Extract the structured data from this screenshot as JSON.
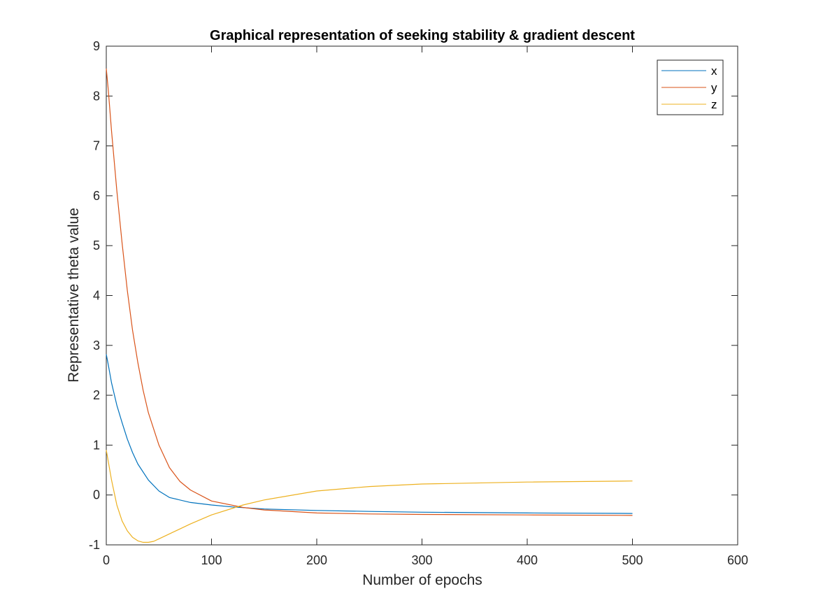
{
  "chart_data": {
    "type": "line",
    "title": "Graphical representation of seeking stability & gradient descent",
    "xlabel": "Number of epochs",
    "ylabel": "Representative theta value",
    "xlim": [
      0,
      600
    ],
    "ylim": [
      -1,
      9
    ],
    "xticks": [
      "0",
      "100",
      "200",
      "300",
      "400",
      "500",
      "600"
    ],
    "yticks": [
      "-1",
      "0",
      "1",
      "2",
      "3",
      "4",
      "5",
      "6",
      "7",
      "8",
      "9"
    ],
    "grid": false,
    "legend_position": "top-right",
    "series": [
      {
        "name": "x",
        "color": "#0072BD",
        "x": [
          0,
          2,
          5,
          10,
          15,
          20,
          25,
          30,
          40,
          50,
          60,
          80,
          100,
          120,
          150,
          200,
          250,
          300,
          400,
          500
        ],
        "y": [
          2.82,
          2.6,
          2.25,
          1.8,
          1.45,
          1.12,
          0.85,
          0.62,
          0.3,
          0.08,
          -0.05,
          -0.15,
          -0.2,
          -0.24,
          -0.28,
          -0.31,
          -0.33,
          -0.345,
          -0.36,
          -0.37
        ]
      },
      {
        "name": "y",
        "color": "#D95319",
        "x": [
          0,
          2,
          5,
          10,
          15,
          20,
          25,
          30,
          35,
          40,
          50,
          60,
          70,
          80,
          100,
          130,
          150,
          200,
          250,
          300,
          400,
          500
        ],
        "y": [
          8.55,
          8.1,
          7.3,
          6.1,
          5.05,
          4.1,
          3.3,
          2.65,
          2.1,
          1.65,
          1.0,
          0.55,
          0.27,
          0.1,
          -0.12,
          -0.25,
          -0.3,
          -0.36,
          -0.38,
          -0.39,
          -0.4,
          -0.41
        ]
      },
      {
        "name": "z",
        "color": "#EDB120",
        "x": [
          0,
          5,
          10,
          15,
          20,
          25,
          30,
          35,
          40,
          45,
          50,
          60,
          80,
          100,
          130,
          150,
          200,
          250,
          300,
          400,
          500
        ],
        "y": [
          0.9,
          0.3,
          -0.2,
          -0.52,
          -0.72,
          -0.85,
          -0.92,
          -0.95,
          -0.95,
          -0.93,
          -0.88,
          -0.78,
          -0.58,
          -0.4,
          -0.2,
          -0.1,
          0.08,
          0.17,
          0.22,
          0.26,
          0.28
        ]
      }
    ]
  }
}
